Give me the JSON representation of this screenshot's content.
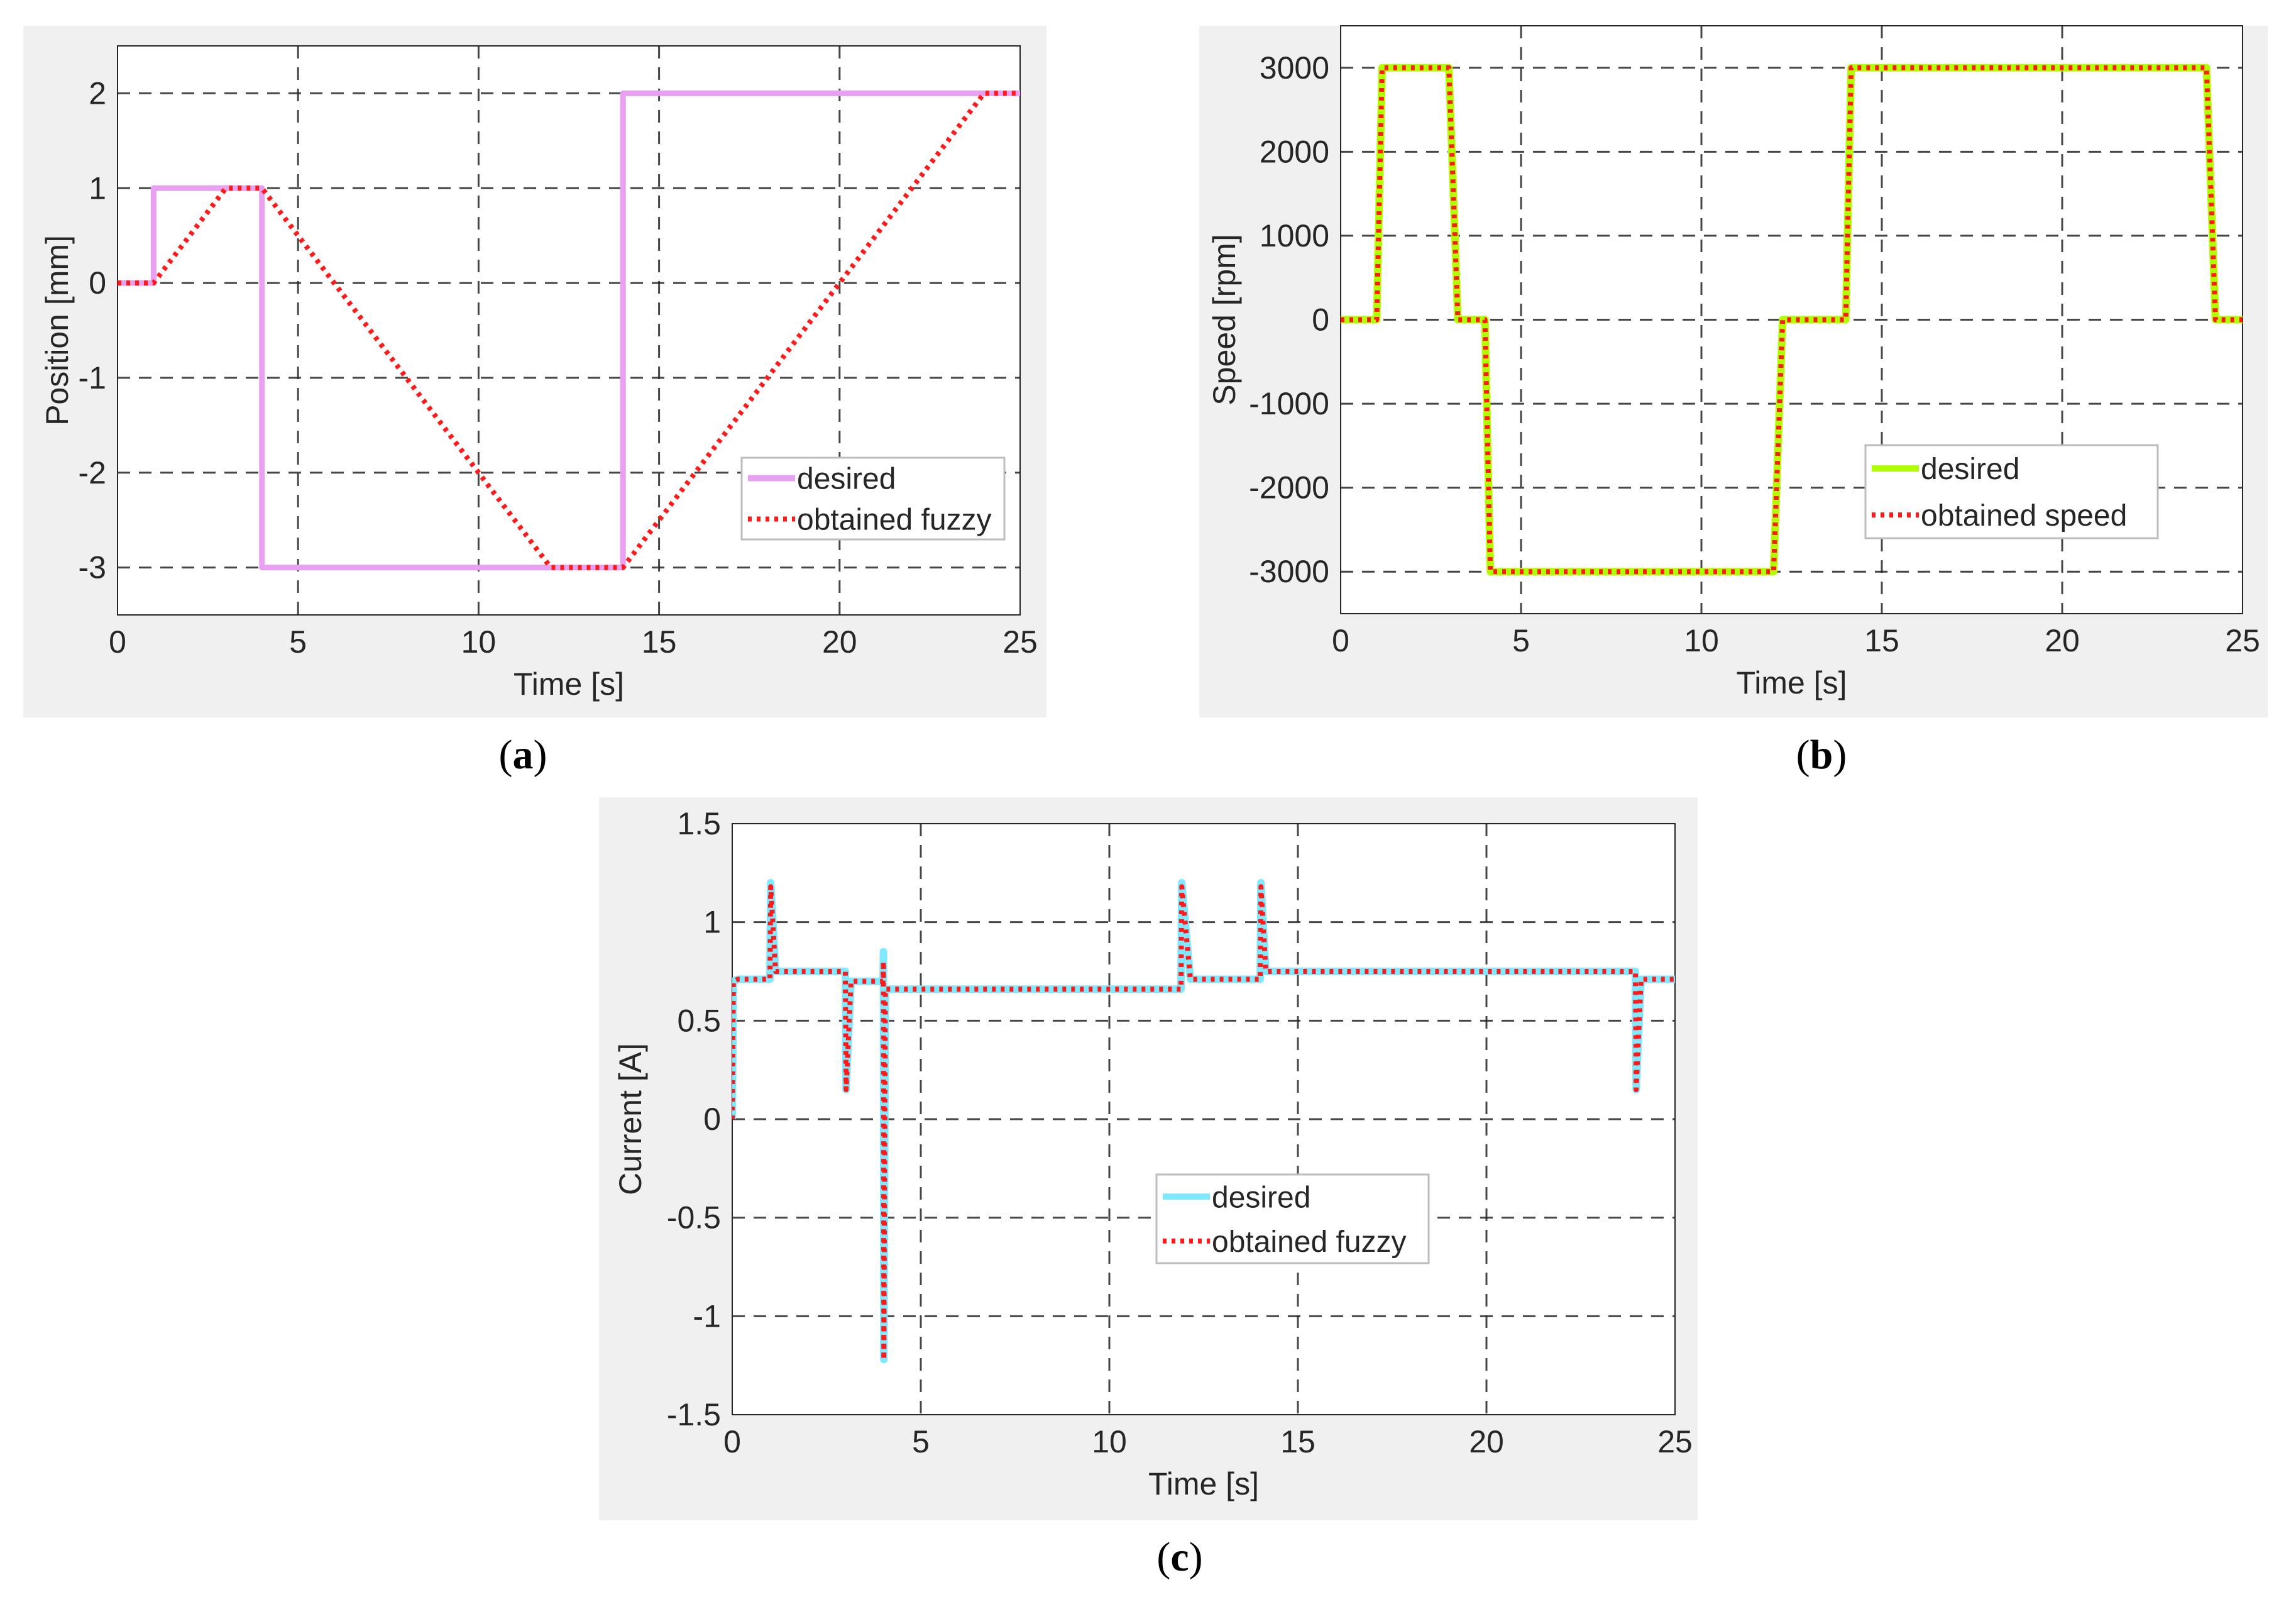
{
  "chart_data": [
    {
      "id": "a",
      "type": "line",
      "caption_letter": "a",
      "caption_open": "(",
      "caption_close": ")",
      "xlabel": "Time [s]",
      "ylabel": "Position [mm]",
      "xlim": [
        0,
        25
      ],
      "ylim": [
        -3.5,
        2.5
      ],
      "xticks": [
        0,
        5,
        10,
        15,
        20,
        25
      ],
      "xtick_labels": [
        "0",
        "5",
        "10",
        "15",
        "20",
        "25"
      ],
      "yticks": [
        -3,
        -2,
        -1,
        0,
        1,
        2
      ],
      "ytick_labels": [
        "-3",
        "-2",
        "-1",
        "0",
        "1",
        "2"
      ],
      "grid": true,
      "legend_position": "bottom-right",
      "series": [
        {
          "name": "desired",
          "color": "#e8a0f0",
          "style": "solid",
          "x": [
            0,
            1,
            1,
            4,
            4,
            14,
            14,
            25
          ],
          "y": [
            0,
            0,
            1,
            1,
            -3,
            -3,
            2,
            2
          ]
        },
        {
          "name": "obtained fuzzy",
          "color": "#ff1a1a",
          "style": "dotted",
          "x": [
            0,
            1,
            3,
            4,
            12,
            14,
            24,
            25
          ],
          "y": [
            0,
            0,
            1,
            1,
            -3,
            -3,
            2,
            2
          ]
        }
      ]
    },
    {
      "id": "b",
      "type": "line",
      "caption_letter": "b",
      "caption_open": "(",
      "caption_close": ")",
      "xlabel": "Time [s]",
      "ylabel": "Speed [rpm]",
      "xlim": [
        0,
        25
      ],
      "ylim": [
        -3500,
        3500
      ],
      "xticks": [
        0,
        5,
        10,
        15,
        20,
        25
      ],
      "xtick_labels": [
        "0",
        "5",
        "10",
        "15",
        "20",
        "25"
      ],
      "yticks": [
        -3000,
        -2000,
        -1000,
        0,
        1000,
        2000,
        3000
      ],
      "ytick_labels": [
        "-3000",
        "-2000",
        "-1000",
        "0",
        "1000",
        "2000",
        "3000"
      ],
      "grid": true,
      "legend_position": "middle-right",
      "series": [
        {
          "name": "desired",
          "color": "#b0ff00",
          "style": "solid",
          "x": [
            0,
            1,
            1.15,
            3,
            3.25,
            4,
            4.15,
            12,
            12.25,
            14,
            14.15,
            24,
            24.25,
            25
          ],
          "y": [
            0,
            0,
            3000,
            3000,
            0,
            0,
            -3000,
            -3000,
            0,
            0,
            3000,
            3000,
            0,
            0
          ]
        },
        {
          "name": "obtained speed",
          "color": "#ff1a1a",
          "style": "dotted",
          "x": [
            0,
            1,
            1.15,
            3,
            3.25,
            4,
            4.15,
            12,
            12.25,
            14,
            14.15,
            24,
            24.25,
            25
          ],
          "y": [
            0,
            0,
            3000,
            3000,
            0,
            0,
            -3000,
            -3000,
            0,
            0,
            3000,
            3000,
            0,
            0
          ]
        }
      ]
    },
    {
      "id": "c",
      "type": "line",
      "caption_letter": "c",
      "caption_open": "(",
      "caption_close": ")",
      "xlabel": "Time [s]",
      "ylabel": "Current [A]",
      "xlim": [
        0,
        25
      ],
      "ylim": [
        -1.5,
        1.5
      ],
      "xticks": [
        0,
        5,
        10,
        15,
        20,
        25
      ],
      "xtick_labels": [
        "0",
        "5",
        "10",
        "15",
        "20",
        "25"
      ],
      "yticks": [
        -1.5,
        -1,
        -0.5,
        0,
        0.5,
        1,
        1.5
      ],
      "ytick_labels": [
        "-1.5",
        "-1",
        "-0.5",
        "0",
        "0.5",
        "1",
        "1.5"
      ],
      "grid": true,
      "legend_position": "center",
      "series": [
        {
          "name": "desired",
          "color": "#80e8ff",
          "style": "solid",
          "x": [
            0,
            0.03,
            0.15,
            1,
            1.02,
            1.15,
            3,
            3.02,
            3.15,
            4,
            4.01,
            4.02,
            4.06,
            4.2,
            11.9,
            11.92,
            12.15,
            14,
            14.02,
            14.15,
            23.95,
            23.97,
            24.1,
            25
          ],
          "y": [
            0,
            0.7,
            0.71,
            0.71,
            1.2,
            0.75,
            0.75,
            0.15,
            0.7,
            0.7,
            0.85,
            -1.22,
            0.66,
            0.66,
            0.66,
            1.2,
            0.71,
            0.71,
            1.2,
            0.75,
            0.75,
            0.15,
            0.71,
            0.71
          ]
        },
        {
          "name": "obtained fuzzy",
          "color": "#ff1a1a",
          "style": "dotted",
          "x": [
            0,
            0.03,
            0.15,
            1,
            1.02,
            1.15,
            3,
            3.02,
            3.15,
            4,
            4.01,
            4.02,
            4.06,
            4.2,
            11.9,
            11.92,
            12.15,
            14,
            14.02,
            14.15,
            23.95,
            23.97,
            24.1,
            25
          ],
          "y": [
            0,
            0.7,
            0.71,
            0.71,
            1.18,
            0.75,
            0.75,
            0.15,
            0.7,
            0.7,
            0.8,
            -1.22,
            0.66,
            0.66,
            0.66,
            1.18,
            0.71,
            0.71,
            1.18,
            0.75,
            0.75,
            0.15,
            0.71,
            0.71
          ]
        }
      ]
    }
  ]
}
